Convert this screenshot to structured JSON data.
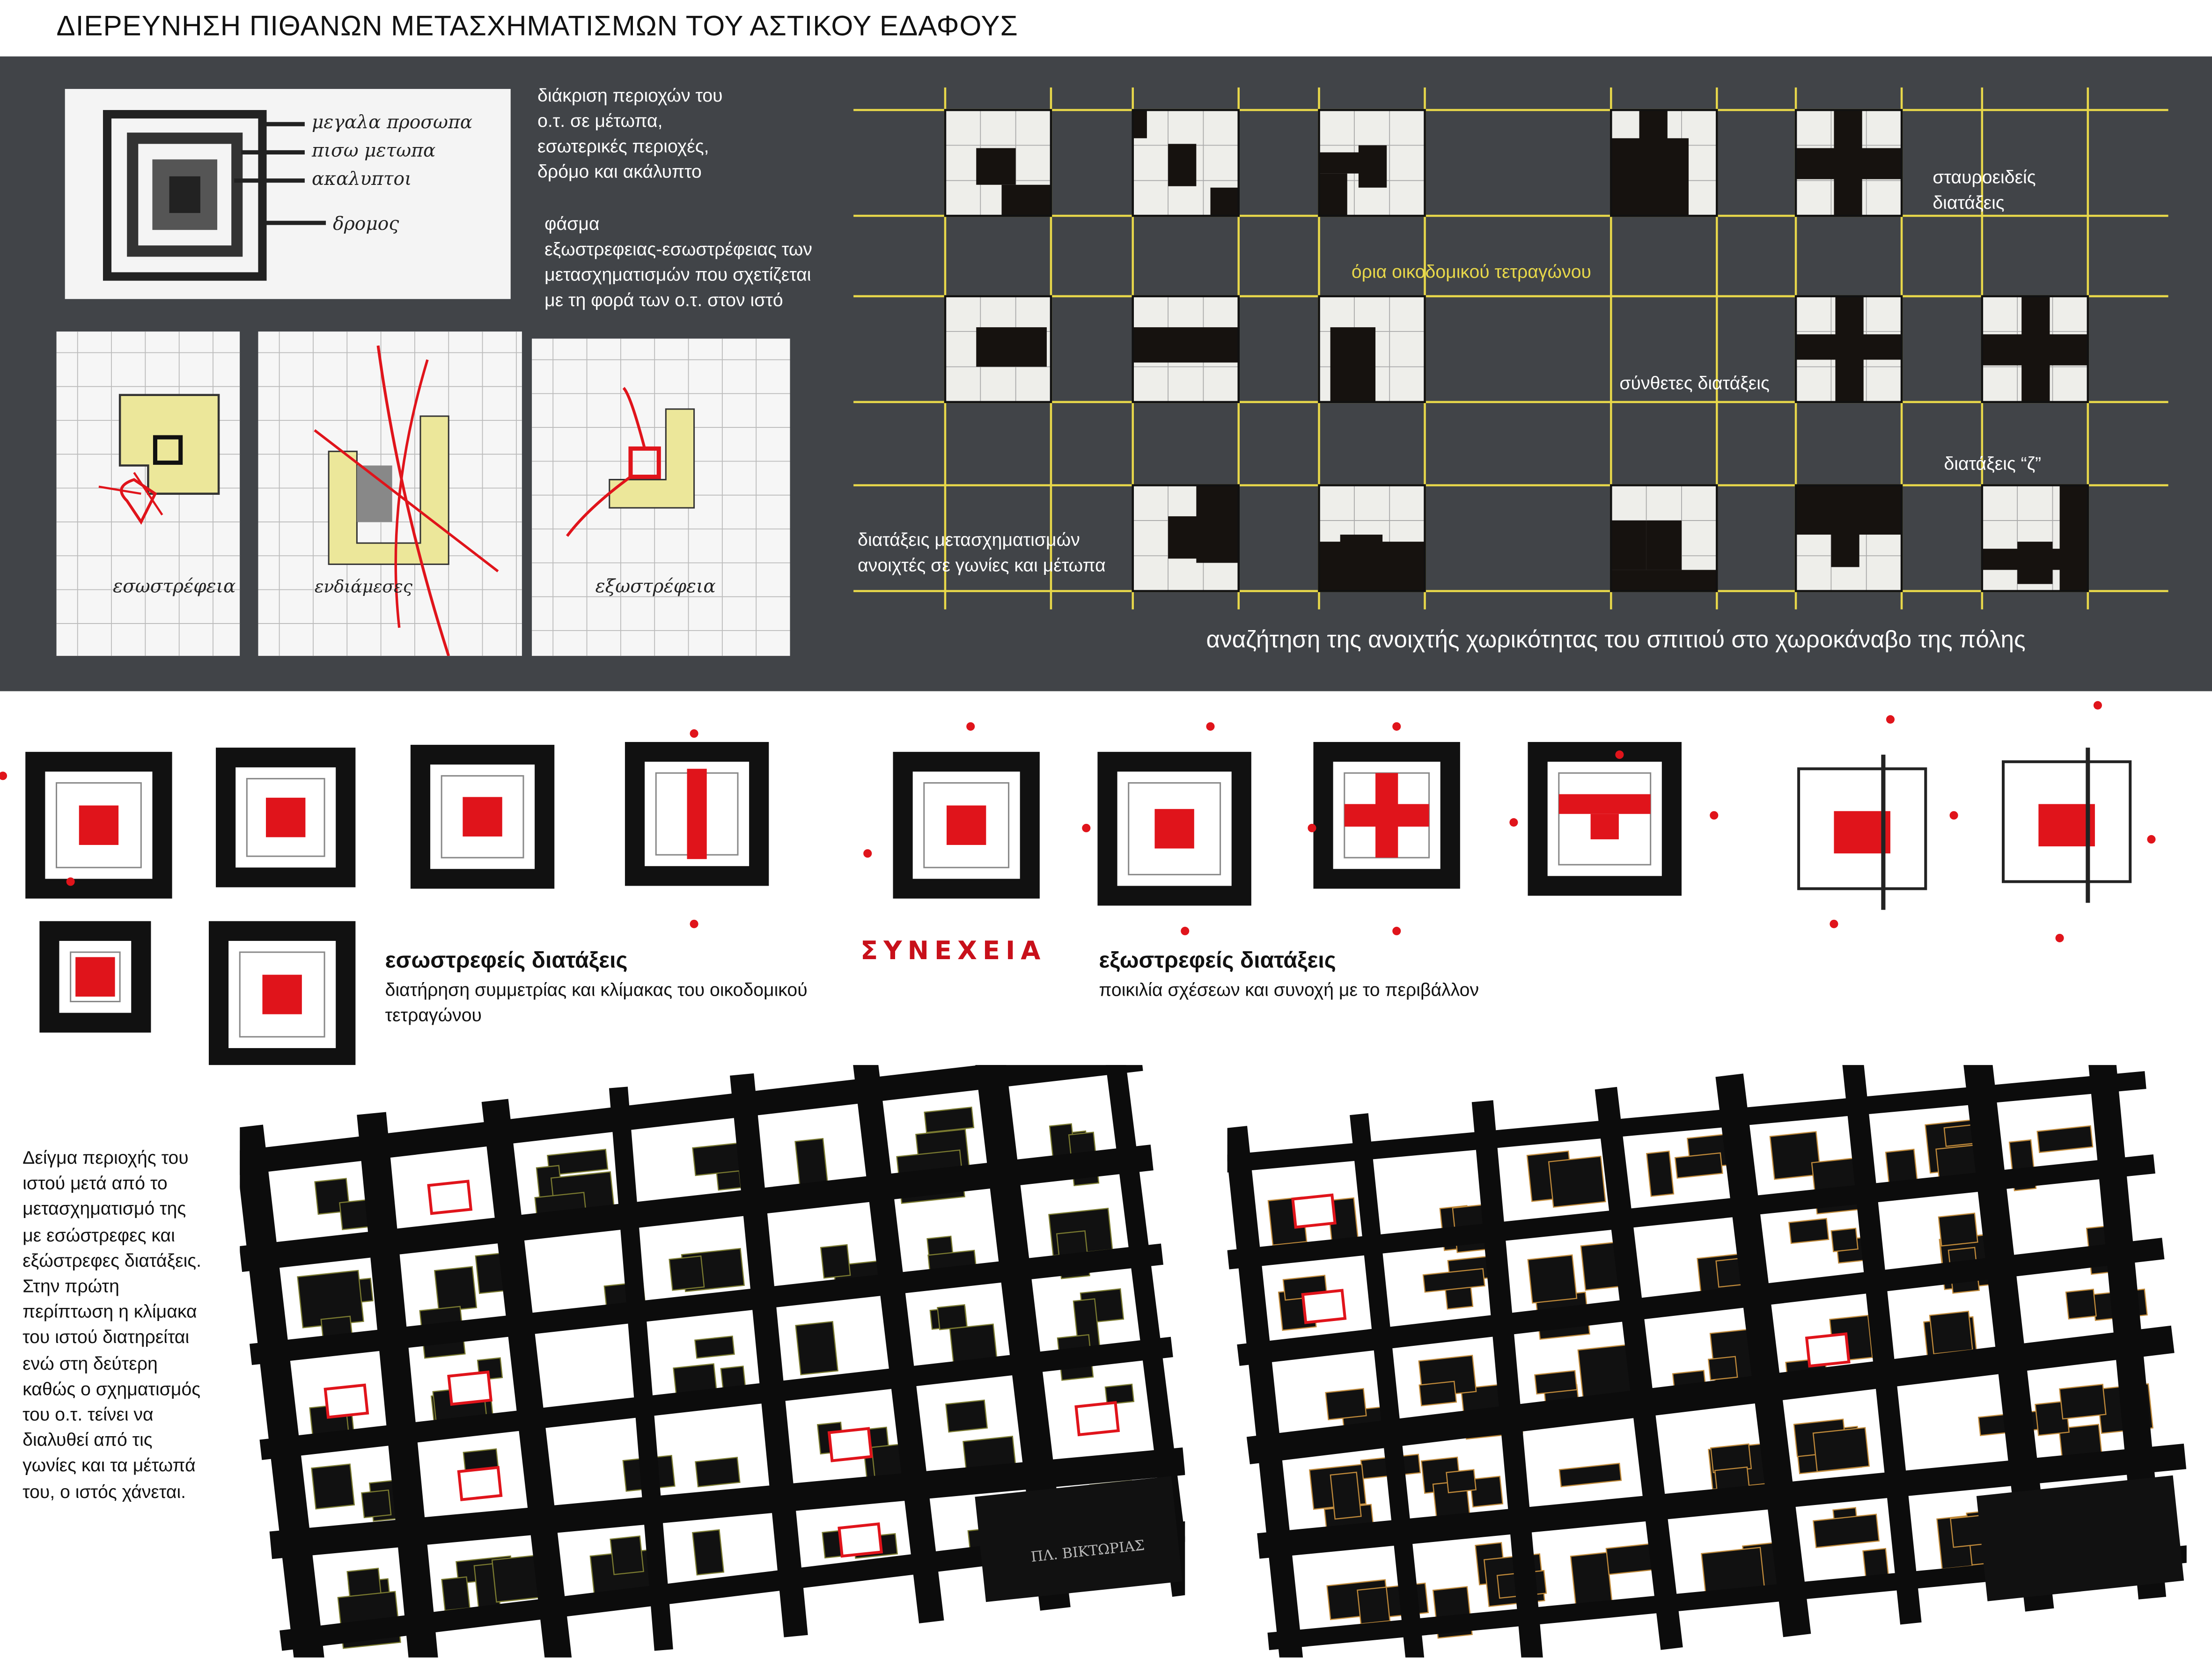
{
  "title": "ΔΙΕΡΕΥΝΗΣΗ ΠΙΘΑΝΩΝ ΜΕΤΑΣΧΗΜΑΤΙΣΜΩΝ ΤΟΥ ΑΣΤΙΚΟΥ ΕΔΑΦΟΥΣ",
  "panel": {
    "note1": [
      "διάκριση περιοχών του",
      "ο.τ. σε μέτωπα,",
      "εσωτερικές περιοχές,",
      "δρόμο και ακάλυπτο"
    ],
    "note2": [
      "φάσμα",
      "εξωστρεφειας-εσωστρέφειας των",
      "μετασχηματισμών που σχετίζεται",
      "με τη φορά των ο.τ. στον ιστό"
    ],
    "sketch_labels": {
      "handwritten": [
        "μεγαλα προσωπα",
        "πισω μετωπα",
        "ακαλυπτοι",
        "δρομος"
      ],
      "s1": "εσωστρέφεια",
      "s2": "ενδιάμεσες",
      "s3": "εξωστρέφεια"
    },
    "grid_labels": {
      "block_limits": "όρια οικοδομικού τετραγώνου",
      "cross": [
        "σταυροειδείς",
        "διατάξεις"
      ],
      "composite": "σύνθετες διατάξεις",
      "z": "διατάξεις “ζ”",
      "open": [
        "διατάξεις μετασχηματισμών",
        "ανοιχτές σε γωνίες και μέτωπα"
      ]
    },
    "caption": "αναζήτηση της ανοιχτής χωρικότητας του σπιτιού στο χωροκάναβο της πόλης"
  },
  "middle": {
    "continuation": "ΣΥΝΕΧΕΙΑ",
    "introverted": {
      "heading": "εσωστρεφείς διατάξεις",
      "desc": [
        "διατήρηση συμμετρίας και κλίμακας του οικοδομικού",
        "τετραγώνου"
      ]
    },
    "extroverted": {
      "heading": "εξωστρεφείς διατάξεις",
      "desc": [
        "ποικιλία σχέσεων  και συνοχή με το περιβάλλον"
      ]
    }
  },
  "bottom": {
    "note": [
      "Δείγμα περιοχής του",
      "ιστού μετά από το",
      "μετασχηματισμό της",
      "με εσώστρεφες και",
      "εξώστρεφες διατάξεις.",
      "Στην πρώτη",
      "περίπτωση η κλίμακα",
      "του ιστού διατηρείται",
      "ενώ στη δεύτερη",
      "καθώς ο σχηματισμός",
      "του ο.τ. τείνει να",
      "διαλυθεί από τις",
      "γωνίες και τα μέτωπά",
      "του, ο ιστός χάνεται."
    ],
    "map_label": "ΠΛ. ΒΙΚΤΩΡΙΑΣ"
  },
  "colors": {
    "panel": "#414448",
    "grid_yellow": "#e8d84a",
    "sketch_red": "#e0141b",
    "highlight_yellow": "#ece79a"
  }
}
